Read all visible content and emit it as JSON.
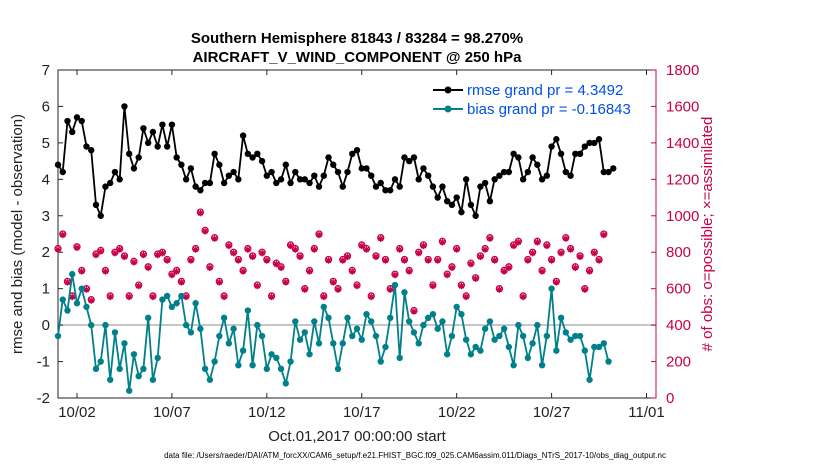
{
  "chart_data": {
    "type": "line",
    "title_line1": "Southern Hemisphere 81843 / 83284 = 98.270%",
    "title_line2": "AIRCRAFT_V_WIND_COMPONENT @ 250 hPa",
    "xlabel": "Oct.01,2017 00:00:00 start",
    "ylabel_left": "rmse and bias (model - observation)",
    "ylabel_right": "# of obs: o=possible; ×=assimilated",
    "footnote": "data file: /Users/raeder/DAI/ATM_forcXX/CAM6_setup/f.e21.FHIST_BGC.f09_025.CAM6assim.011/Diags_NTrS_2017-10/obs_diag_output.nc",
    "x_range_days": [
      0,
      31.5
    ],
    "ylim_left": [
      -2,
      7
    ],
    "ylim_right": [
      0,
      1800
    ],
    "x_ticks": [
      {
        "day": 1,
        "label": "10/02"
      },
      {
        "day": 6,
        "label": "10/07"
      },
      {
        "day": 11,
        "label": "10/12"
      },
      {
        "day": 16,
        "label": "10/17"
      },
      {
        "day": 21,
        "label": "10/22"
      },
      {
        "day": 26,
        "label": "10/27"
      },
      {
        "day": 31,
        "label": "11/01"
      }
    ],
    "y_ticks_left": [
      "-2",
      "-1",
      "0",
      "1",
      "2",
      "3",
      "4",
      "5",
      "6",
      "7"
    ],
    "y_ticks_right": [
      "0",
      "200",
      "400",
      "600",
      "800",
      "1000",
      "1200",
      "1400",
      "1600",
      "1800"
    ],
    "series": [
      {
        "name": "rmse",
        "legend": "rmse grand pr = 4.3492",
        "color": "#000000",
        "x_start_day": 0.0,
        "x_step_day": 0.25,
        "values": [
          4.4,
          4.2,
          5.6,
          5.3,
          5.7,
          5.6,
          4.9,
          4.8,
          3.3,
          3.0,
          3.8,
          3.9,
          4.2,
          4.0,
          6.0,
          4.7,
          4.3,
          4.6,
          5.4,
          5.0,
          5.3,
          4.9,
          5.5,
          4.9,
          5.5,
          4.6,
          4.4,
          4.0,
          4.3,
          3.8,
          3.7,
          3.9,
          3.9,
          4.7,
          4.4,
          3.9,
          4.1,
          4.2,
          4.0,
          5.2,
          4.7,
          4.6,
          4.7,
          4.5,
          4.1,
          4.2,
          3.9,
          4.0,
          4.4,
          3.9,
          4.2,
          4.0,
          4.0,
          3.9,
          4.1,
          3.8,
          4.1,
          4.6,
          4.4,
          4.2,
          3.8,
          4.2,
          4.7,
          4.8,
          4.3,
          4.3,
          4.1,
          3.8,
          3.9,
          3.7,
          3.7,
          4.0,
          3.8,
          4.6,
          4.5,
          4.6,
          4.0,
          4.3,
          4.1,
          3.8,
          3.5,
          3.8,
          3.4,
          3.3,
          3.5,
          3.1,
          4.0,
          3.3,
          3.0,
          3.8,
          3.9,
          3.4,
          4.0,
          4.1,
          4.2,
          4.2,
          4.7,
          4.6,
          4.0,
          4.2,
          4.6,
          4.4,
          4.0,
          4.1,
          4.9,
          5.1,
          4.7,
          4.2,
          4.1,
          4.7,
          4.7,
          4.9,
          5.0,
          5.0,
          5.1,
          4.2,
          4.2,
          4.3
        ]
      },
      {
        "name": "bias",
        "legend": "bias grand pr = -0.16843",
        "color": "#00808a",
        "x_start_day": 0.0,
        "x_step_day": 0.25,
        "values": [
          -0.3,
          0.7,
          0.4,
          1.4,
          0.6,
          1.0,
          0.5,
          0.0,
          -1.2,
          -1.0,
          0.0,
          -1.5,
          -0.2,
          -1.2,
          -0.5,
          -1.8,
          -0.8,
          -1.4,
          -1.2,
          0.2,
          -1.5,
          -0.9,
          0.7,
          0.8,
          0.5,
          0.6,
          0.8,
          0.0,
          -0.2,
          0.6,
          -0.1,
          -1.2,
          -1.5,
          -1.0,
          -0.3,
          0.2,
          -0.5,
          -0.1,
          -1.1,
          -0.7,
          0.4,
          -1.1,
          0.0,
          -0.3,
          -1.2,
          -0.8,
          -0.9,
          -1.2,
          -1.6,
          -1.0,
          0.1,
          -0.4,
          -0.2,
          -0.8,
          0.1,
          -0.5,
          0.5,
          0.2,
          -0.5,
          -1.2,
          -0.5,
          0.2,
          -0.3,
          -0.1,
          -0.4,
          0.3,
          0.1,
          -0.3,
          -1.0,
          -0.6,
          0.2,
          1.1,
          -0.9,
          0.9,
          0.1,
          -0.2,
          -0.5,
          0.0,
          0.2,
          0.3,
          -0.1,
          0.1,
          -0.8,
          -0.3,
          0.5,
          0.3,
          -0.4,
          -0.8,
          -0.6,
          -0.7,
          -0.1,
          0.1,
          -0.4,
          -0.3,
          -0.1,
          -0.6,
          -1.1,
          0.0,
          -0.3,
          -0.9,
          -0.5,
          0.0,
          -1.1,
          -0.3,
          1.0,
          -0.7,
          0.2,
          -0.2,
          -0.4,
          -0.3,
          -0.3,
          -0.7,
          -1.5,
          -0.6,
          -0.6,
          -0.5,
          -1.0
        ]
      }
    ],
    "obs_counts": {
      "color": "#c8004b",
      "x_start_day": 0.0,
      "x_step_day": 0.25,
      "possible": [
        820,
        900,
        640,
        560,
        830,
        700,
        600,
        540,
        790,
        810,
        700,
        560,
        800,
        820,
        780,
        560,
        750,
        620,
        790,
        720,
        560,
        790,
        800,
        760,
        680,
        700,
        640,
        560,
        760,
        820,
        1020,
        920,
        720,
        880,
        640,
        560,
        840,
        800,
        760,
        700,
        820,
        780,
        620,
        800,
        760,
        560,
        740,
        720,
        640,
        840,
        820,
        780,
        600,
        700,
        820,
        900,
        560,
        760,
        640,
        600,
        760,
        780,
        700,
        620,
        840,
        820,
        560,
        780,
        880,
        760,
        600,
        680,
        820,
        760,
        700,
        480,
        800,
        840,
        760,
        620,
        760,
        860,
        680,
        720,
        820,
        620,
        560,
        740,
        660,
        780,
        820,
        880,
        760,
        600,
        700,
        720,
        840,
        860,
        560,
        760,
        800,
        860,
        700,
        840,
        760,
        640,
        800,
        880,
        820,
        720,
        780,
        600,
        700,
        800,
        760,
        900
      ]
    }
  }
}
